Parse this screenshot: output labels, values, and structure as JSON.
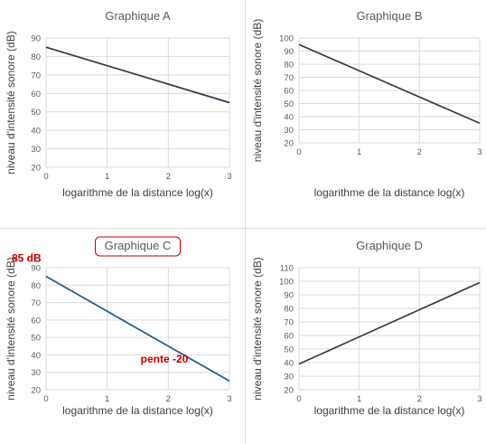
{
  "chart_data": [
    {
      "type": "line",
      "title": "Graphique A",
      "xlabel": "logarithme de la distance log(x)",
      "ylabel": "niveau d'intensité sonore (dB)",
      "xlim": [
        0,
        3
      ],
      "ylim": [
        20,
        90
      ],
      "xticks": [
        0,
        1,
        2,
        3
      ],
      "yticks": [
        20,
        30,
        40,
        50,
        60,
        70,
        80,
        90
      ],
      "grid": true,
      "series": [
        {
          "x": [
            0,
            3
          ],
          "y": [
            85,
            55
          ],
          "color": "#2f3a4a"
        }
      ]
    },
    {
      "type": "line",
      "title": "Graphique B",
      "xlabel": "logarithme de la distance log(x)",
      "ylabel": "niveau d'intensité sonore (dB)",
      "xlim": [
        0,
        3
      ],
      "ylim": [
        20,
        100
      ],
      "xticks": [
        0,
        1,
        2,
        3
      ],
      "yticks": [
        20,
        30,
        40,
        50,
        60,
        70,
        80,
        90,
        100
      ],
      "grid": true,
      "series": [
        {
          "x": [
            0,
            3
          ],
          "y": [
            95,
            35
          ],
          "color": "#2f3a4a"
        }
      ]
    },
    {
      "type": "line",
      "title": "Graphique C",
      "title_boxed": true,
      "xlabel": "logarithme de la distance log(x)",
      "ylabel": "niveau d'intensité sonore (dB)",
      "xlim": [
        0,
        3
      ],
      "ylim": [
        20,
        90
      ],
      "xticks": [
        0,
        1,
        2,
        3
      ],
      "yticks": [
        20,
        30,
        40,
        50,
        60,
        70,
        80,
        90
      ],
      "grid": true,
      "series": [
        {
          "x": [
            0,
            3
          ],
          "y": [
            85,
            25
          ],
          "color": "#1f5a8a"
        }
      ],
      "annotations": [
        {
          "text": "85 dB",
          "x": 0,
          "y": 85,
          "color": "#c00000"
        },
        {
          "text": "pente -20",
          "x": 1.0,
          "y": 50,
          "color": "#c00000"
        }
      ]
    },
    {
      "type": "line",
      "title": "Graphique D",
      "xlabel": "logarithme de la distance log(x)",
      "ylabel": "niveau d'intensité sonore (dB)",
      "xlim": [
        0,
        3
      ],
      "ylim": [
        20,
        110
      ],
      "xticks": [
        0,
        1,
        2,
        3
      ],
      "yticks": [
        20,
        30,
        40,
        50,
        60,
        70,
        80,
        90,
        100,
        110
      ],
      "grid": true,
      "series": [
        {
          "x": [
            0,
            3
          ],
          "y": [
            39,
            99
          ],
          "color": "#2f3a4a"
        }
      ]
    }
  ]
}
